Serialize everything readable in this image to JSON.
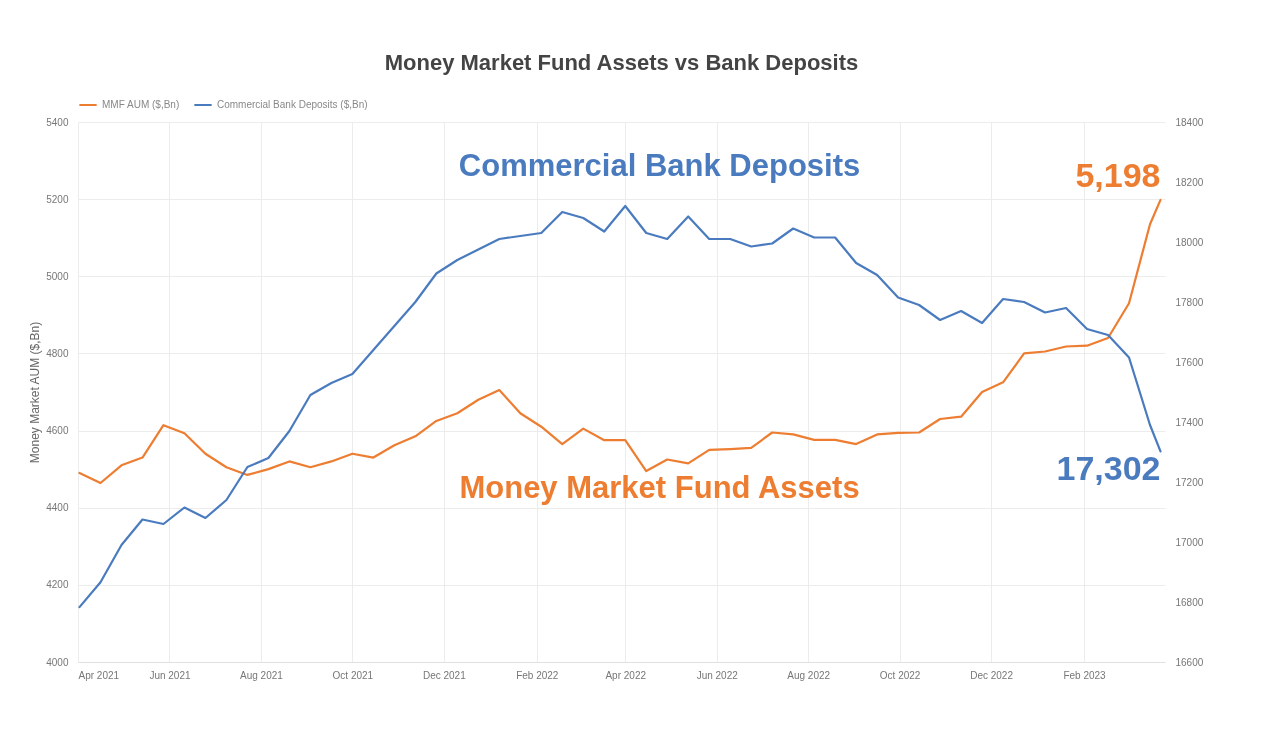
{
  "chart_data": {
    "type": "line",
    "title": "Money Market Fund Assets vs Bank Deposits",
    "ylabel": "Money Market AUM ($,Bn)",
    "x": [
      "2021-04-02",
      "2021-04-16",
      "2021-04-30",
      "2021-05-14",
      "2021-05-28",
      "2021-06-11",
      "2021-06-25",
      "2021-07-09",
      "2021-07-23",
      "2021-08-06",
      "2021-08-20",
      "2021-09-03",
      "2021-09-17",
      "2021-10-01",
      "2021-10-15",
      "2021-10-29",
      "2021-11-12",
      "2021-11-26",
      "2021-12-10",
      "2021-12-24",
      "2022-01-07",
      "2022-01-21",
      "2022-02-04",
      "2022-02-18",
      "2022-03-04",
      "2022-03-18",
      "2022-04-01",
      "2022-04-15",
      "2022-04-29",
      "2022-05-13",
      "2022-05-27",
      "2022-06-10",
      "2022-06-24",
      "2022-07-08",
      "2022-07-22",
      "2022-08-05",
      "2022-08-19",
      "2022-09-02",
      "2022-09-16",
      "2022-09-30",
      "2022-10-14",
      "2022-10-28",
      "2022-11-11",
      "2022-11-25",
      "2022-12-09",
      "2022-12-23",
      "2023-01-06",
      "2023-01-20",
      "2023-02-03",
      "2023-02-17",
      "2023-03-03",
      "2023-03-17",
      "2023-03-24"
    ],
    "series": [
      {
        "name": "MMF AUM ($,Bn)",
        "color": "#ed7d31",
        "value_labels": [
          null,
          null,
          null,
          null,
          null,
          null,
          null,
          null,
          null,
          null,
          null,
          null,
          null,
          null,
          null,
          null,
          null,
          null,
          null,
          null,
          null,
          null,
          null,
          null,
          null,
          null,
          null,
          null,
          null,
          null,
          null,
          null,
          null,
          null,
          null,
          null,
          null,
          null,
          null,
          null,
          null,
          null,
          null,
          null,
          null,
          null,
          null,
          null,
          null,
          null,
          null,
          null,
          "5,198"
        ],
        "values": [
          4490,
          4464,
          4510,
          4530,
          4614,
          4593,
          4540,
          4505,
          4485,
          4500,
          4520,
          4505,
          4520,
          4540,
          4530,
          4562,
          4585,
          4625,
          4645,
          4680,
          4705,
          4645,
          4610,
          4565,
          4605,
          4575,
          4575,
          4495,
          4525,
          4515,
          4550,
          4552,
          4555,
          4595,
          4590,
          4576,
          4576,
          4565,
          4590,
          4594,
          4595,
          4630,
          4636,
          4700,
          4725,
          4800,
          4805,
          4818,
          4820,
          4840,
          4930,
          5135,
          5198
        ]
      },
      {
        "name": "Commercial Bank Deposits ($,Bn)",
        "color": "#4a7bbf",
        "axis": "y2",
        "value_labels": [
          null,
          null,
          null,
          null,
          null,
          null,
          null,
          null,
          null,
          null,
          null,
          null,
          null,
          null,
          null,
          null,
          null,
          null,
          null,
          null,
          null,
          null,
          null,
          null,
          null,
          null,
          null,
          null,
          null,
          null,
          null,
          null,
          null,
          null,
          null,
          null,
          null,
          null,
          null,
          null,
          null,
          null,
          null,
          null,
          null,
          null,
          null,
          null,
          null,
          null,
          null,
          null,
          "17,302"
        ],
        "values": [
          16783,
          16866,
          16990,
          17075,
          17060,
          17115,
          17080,
          17140,
          17250,
          17280,
          17370,
          17490,
          17530,
          17560,
          17640,
          17720,
          17800,
          17895,
          17940,
          17975,
          18010,
          18020,
          18030,
          18100,
          18080,
          18035,
          18120,
          18030,
          18010,
          18085,
          18010,
          18010,
          17985,
          17995,
          18045,
          18015,
          18015,
          17930,
          17890,
          17815,
          17790,
          17740,
          17770,
          17730,
          17810,
          17800,
          17765,
          17780,
          17710,
          17690,
          17615,
          17390,
          17302
        ]
      }
    ],
    "xlim": [
      "2021-04-01",
      "2023-03-27"
    ],
    "xticks": [
      {
        "value": "2021-04",
        "label": "Apr 2021"
      },
      {
        "value": "2021-06",
        "label": "Jun 2021"
      },
      {
        "value": "2021-08",
        "label": "Aug 2021"
      },
      {
        "value": "2021-10",
        "label": "Oct 2021"
      },
      {
        "value": "2021-12",
        "label": "Dec 2021"
      },
      {
        "value": "2022-02",
        "label": "Feb 2022"
      },
      {
        "value": "2022-04",
        "label": "Apr 2022"
      },
      {
        "value": "2022-06",
        "label": "Jun 2022"
      },
      {
        "value": "2022-08",
        "label": "Aug 2022"
      },
      {
        "value": "2022-10",
        "label": "Oct 2022"
      },
      {
        "value": "2022-12",
        "label": "Dec 2022"
      },
      {
        "value": "2023-02",
        "label": "Feb 2023"
      }
    ],
    "ylim": [
      4000,
      5400
    ],
    "yticks": [
      4000,
      4200,
      4400,
      4600,
      4800,
      5000,
      5200,
      5400
    ],
    "y2lim": [
      16600,
      18400
    ],
    "y2ticks": [
      16600,
      16800,
      17000,
      17200,
      17400,
      17600,
      17800,
      18000,
      18200,
      18400
    ],
    "annotations": [
      "Money Market Fund Assets",
      "Commercial Bank Deposits"
    ],
    "grid": true,
    "legend": "top",
    "marker": "none",
    "line_style": "solid"
  }
}
